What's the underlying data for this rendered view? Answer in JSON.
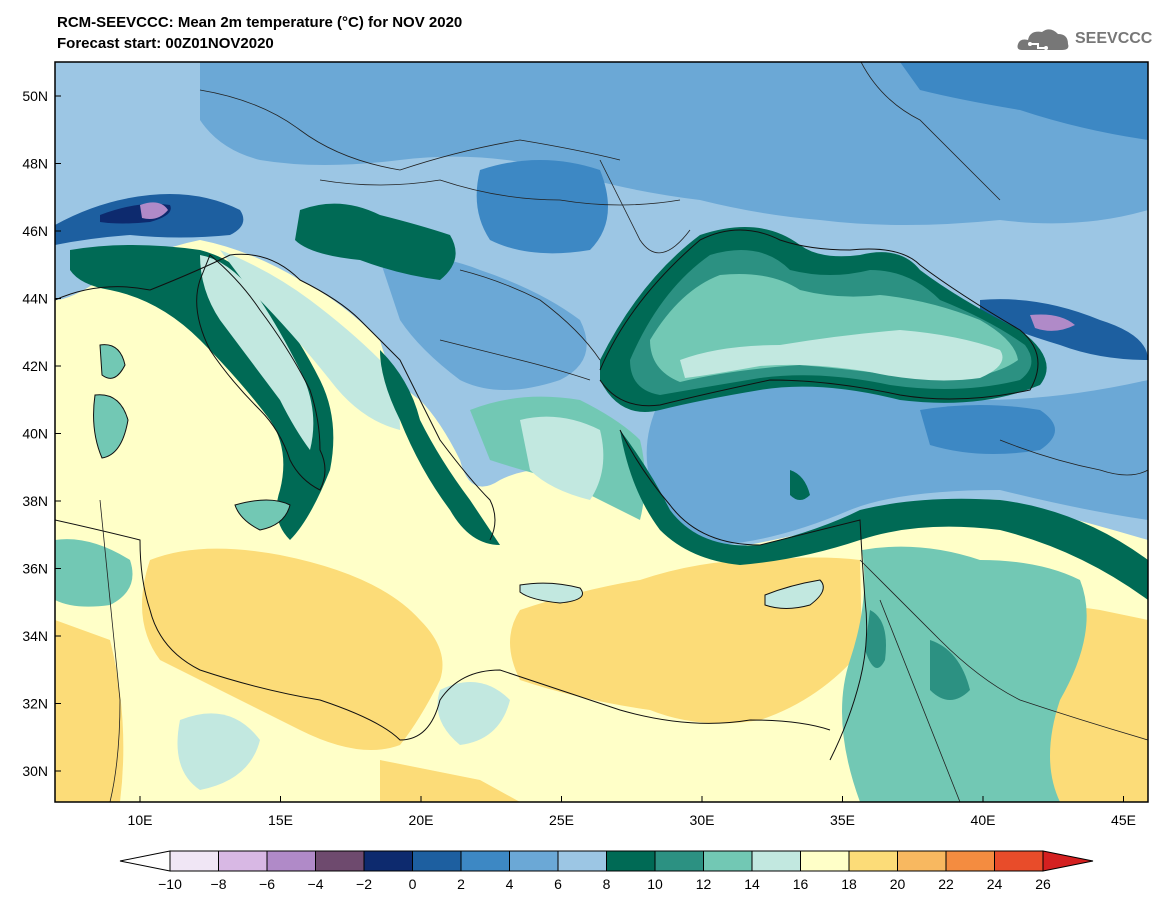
{
  "header": {
    "title": "RCM-SEEVCCC: Mean 2m temperature (°C) for NOV 2020",
    "subtitle": "Forecast start: 00Z01NOV2020",
    "logo_text": "SEEVCCC"
  },
  "axes": {
    "lat_labels": [
      "50N",
      "48N",
      "46N",
      "44N",
      "42N",
      "40N",
      "38N",
      "36N",
      "34N",
      "32N",
      "30N"
    ],
    "lon_labels": [
      "10E",
      "15E",
      "20E",
      "25E",
      "30E",
      "35E",
      "40E",
      "45E"
    ]
  },
  "colorbar": {
    "ticks": [
      "−10",
      "−8",
      "−6",
      "−4",
      "−2",
      "0",
      "2",
      "4",
      "6",
      "8",
      "10",
      "12",
      "14",
      "16",
      "18",
      "20",
      "22",
      "24",
      "26"
    ],
    "colors": [
      "#f0e6f5",
      "#d8b8e4",
      "#b08ac8",
      "#6e4a6e",
      "#0d2a6e",
      "#1d5fa0",
      "#3d88c4",
      "#6ba8d6",
      "#9cc6e4",
      "#006a55",
      "#2c9182",
      "#72c8b4",
      "#c2e8e0",
      "#ffffc8",
      "#fcdc78",
      "#f8b860",
      "#f48c40",
      "#e84c2a"
    ],
    "under_color": "#ffffff",
    "over_color": "#d42020"
  },
  "map_colors": {
    "sea_warm": "#ffffc8",
    "land_warm": "#fcdc78",
    "cool_land": "#6ba8d6",
    "cold_land": "#3d88c4",
    "teal_dark": "#006a55",
    "teal_mid": "#2c9182",
    "teal_light": "#72c8b4",
    "teal_pale": "#c2e8e0",
    "pale_blue": "#9cc6e4",
    "deep_blue": "#1d5fa0",
    "navy": "#0d2a6e",
    "purple": "#b08ac8"
  }
}
